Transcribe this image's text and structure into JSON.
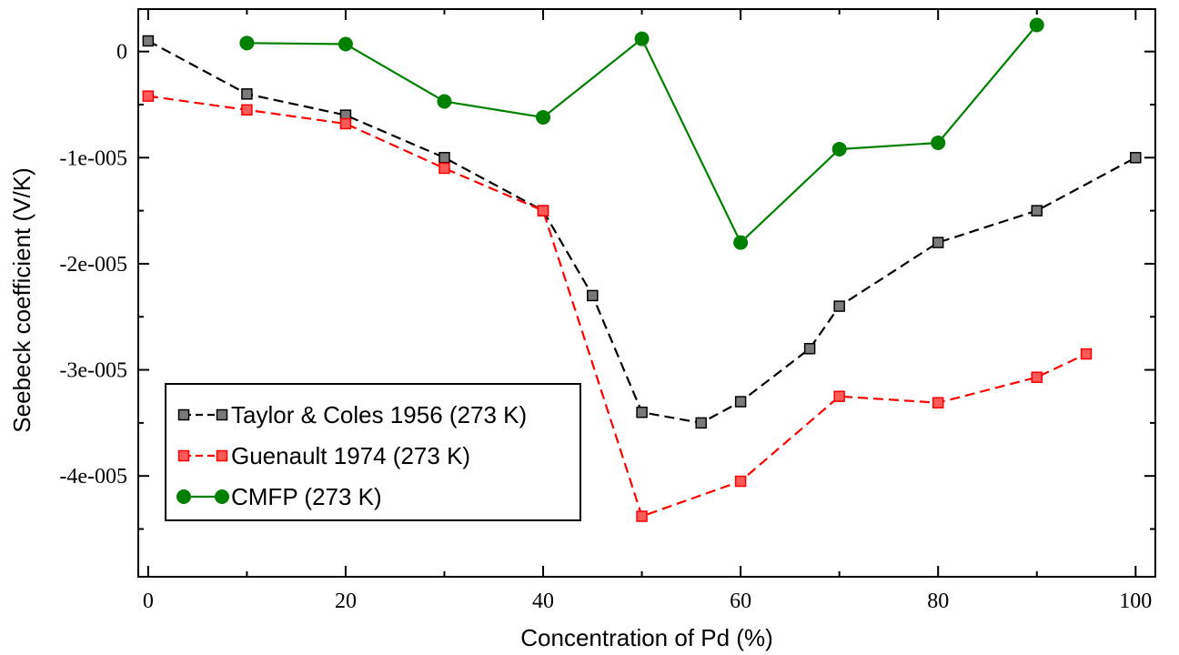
{
  "chart_data": {
    "type": "line",
    "title": "",
    "xlabel": "Concentration of Pd (%)",
    "ylabel": "Seebeck coefficient (V/K)",
    "xlim": [
      -1,
      102
    ],
    "ylim": [
      -4.95e-05,
      4e-06
    ],
    "x_ticks": [
      0,
      20,
      40,
      60,
      80,
      100
    ],
    "x_tick_labels": [
      "0",
      "20",
      "40",
      "60",
      "80",
      "100"
    ],
    "y_ticks": [
      0,
      -1e-05,
      -2e-05,
      -3e-05,
      -4e-05
    ],
    "y_tick_labels": [
      "0",
      "-1e-005",
      "-2e-005",
      "-3e-005",
      "-4e-005"
    ],
    "grid": false,
    "legend_position": "bottom-left",
    "series": [
      {
        "name": "Taylor & Coles 1956 (273 K)",
        "color": "#000000",
        "marker_fill": "#7a7a7a",
        "line_style": "dashed",
        "marker": "square",
        "x": [
          0,
          10,
          20,
          30,
          40,
          45,
          50,
          56,
          60,
          67,
          70,
          80,
          90,
          100
        ],
        "y": [
          1e-06,
          -4e-06,
          -6e-06,
          -1e-05,
          -1.5e-05,
          -2.3e-05,
          -3.4e-05,
          -3.5e-05,
          -3.3e-05,
          -2.8e-05,
          -2.4e-05,
          -1.8e-05,
          -1.5e-05,
          -1e-05
        ]
      },
      {
        "name": "Guenault 1974 (273 K)",
        "color": "#ff0000",
        "marker_fill": "#ff5a5a",
        "line_style": "dashed",
        "marker": "square",
        "x": [
          0,
          10,
          20,
          30,
          40,
          50,
          60,
          70,
          80,
          90,
          95
        ],
        "y": [
          -4.2e-06,
          -5.5e-06,
          -6.8e-06,
          -1.1e-05,
          -1.5e-05,
          -4.38e-05,
          -4.05e-05,
          -3.25e-05,
          -3.31e-05,
          -3.07e-05,
          -2.85e-05
        ]
      },
      {
        "name": "CMFP (273 K)",
        "color": "#008000",
        "marker_fill": "#008000",
        "line_style": "solid",
        "marker": "circle",
        "x": [
          10,
          20,
          30,
          40,
          50,
          60,
          70,
          80,
          90
        ],
        "y": [
          8e-07,
          7e-07,
          -4.7e-06,
          -6.2e-06,
          1.2e-06,
          -1.8e-05,
          -9.2e-06,
          -8.6e-06,
          2.5e-06
        ]
      }
    ]
  }
}
